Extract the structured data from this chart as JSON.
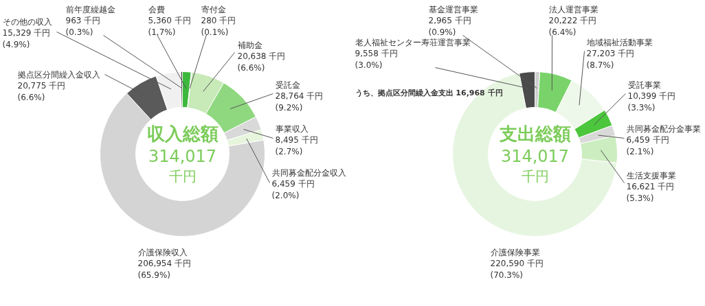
{
  "chart_data": [
    {
      "type": "donut",
      "title": "収入総額",
      "annotations": [
        "314,017",
        "千円"
      ],
      "categories": [
        "会費",
        "寄付金",
        "補助金",
        "受託金",
        "事業収入",
        "共同募金配分金収入",
        "介護保険収入",
        "拠点区分間繰入金収入",
        "その他の収入",
        "前年度繰越金"
      ],
      "values": [
        5360,
        280,
        20638,
        28764,
        8495,
        6459,
        206954,
        20775,
        15329,
        963
      ],
      "value_labels": [
        "5,360 千円\n(1.7%)",
        "280 千円\n(0.1%)",
        "20,638 千円\n(6.6%)",
        "28,764 千円\n(9.2%)",
        "8,495 千円\n(2.7%)",
        "6,459 千円\n(2.0%)",
        "206,954 千円\n(65.9%)",
        "20,775 千円\n(6.6%)",
        "15,329 千円\n(4.9%)",
        "963 千円\n(0.3%)"
      ],
      "colors": [
        "#3cb83c",
        "#a8dca0",
        "#c8eab8",
        "#8fd880",
        "#d9d9d9",
        "#e6f5dc",
        "#d4d4d4",
        "#5a5a5a",
        "#f0f0f0",
        "#3a3a3a"
      ]
    },
    {
      "type": "donut",
      "title": "支出総額",
      "annotations": [
        "314,017",
        "千円",
        "うち、拠点区分間繰入金支出 16,968 千円"
      ],
      "categories": [
        "基金運営事業",
        "法人運営事業",
        "地域福祉活動事業",
        "受託事業",
        "共同募金配分金事業",
        "生活支援事業",
        "介護保険事業",
        "老人福祉センター寿荘運営事業"
      ],
      "values": [
        2965,
        20222,
        27203,
        10399,
        6459,
        16621,
        220590,
        9558
      ],
      "value_labels": [
        "2,965 千円\n(0.9%)",
        "20,222 千円\n(6.4%)",
        "27,203 千円\n(8.7%)",
        "10,399 千円\n(3.3%)",
        "6,459 千円\n(2.1%)",
        "16,621 千円\n(5.3%)",
        "220,590 千円\n(70.3%)",
        "9,558 千円\n(3.0%)"
      ],
      "colors": [
        "#cfcfcf",
        "#7ad36a",
        "#eef8ea",
        "#4cc63c",
        "#d9d9d9",
        "#ccedc0",
        "#e6f5e0",
        "#4a4a4a"
      ]
    }
  ]
}
